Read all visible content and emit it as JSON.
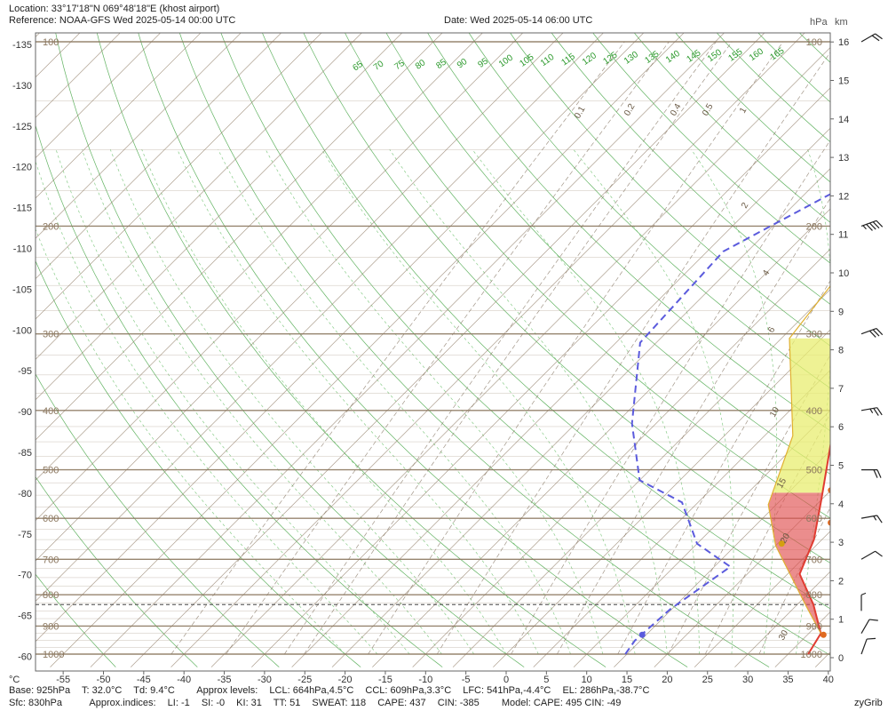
{
  "header": {
    "location_label": "Location:",
    "location_value": "33°17'18\"N  069°48'18\"E (khost airport)",
    "reference_label": "Reference:",
    "reference_value": "NOAA-GFS Wed 2025-05-14 00:00 UTC",
    "date_label": "Date:",
    "date_value": "Wed 2025-05-14 06:00 UTC"
  },
  "footer": {
    "line1": [
      "Base: 925hPa",
      "T: 32.0°C",
      "Td: 9.4°C",
      "Approx levels:",
      "LCL: 664hPa,4.5°C",
      "CCL: 609hPa,3.3°C",
      "LFC: 541hPa,-4.4°C",
      "EL: 286hPa,-38.7°C"
    ],
    "line2": [
      "Sfc: 830hPa",
      "Approx.indices:",
      "LI: -1",
      "SI: -0",
      "KI: 31",
      "TT: 51",
      "SWEAT: 118",
      "CAPE: 437",
      "CIN: -385",
      "Model: CAPE: 495 CIN: -49"
    ],
    "brand": "zyGrib"
  },
  "chart_data": {
    "type": "line",
    "subtype": "skew-t log-p diagram",
    "xlabel": "°C",
    "xlim": [
      -60,
      40
    ],
    "ylim_hpa": [
      1000,
      100
    ],
    "x_ticks": [
      -55,
      -50,
      -45,
      -40,
      -35,
      -30,
      -25,
      -20,
      -15,
      -10,
      -5,
      0,
      5,
      10,
      15,
      20,
      25,
      30,
      35,
      40
    ],
    "left_isotherm_labels": [
      -135,
      -130,
      -125,
      -120,
      -115,
      -110,
      -105,
      -100,
      -95,
      -90,
      -85,
      -80,
      -75,
      -70,
      -65,
      -60
    ],
    "pressure_levels": [
      1000,
      900,
      800,
      700,
      600,
      500,
      400,
      300,
      200,
      100
    ],
    "pressure_axis_label": "hPa",
    "height_axis_label": "km",
    "height_ticks": [
      0,
      1,
      2,
      3,
      4,
      5,
      6,
      7,
      8,
      9,
      10,
      11,
      12,
      13,
      14,
      15,
      16
    ],
    "top_mixing_ratio_labels": [
      "65",
      "70",
      "75",
      "80",
      "85",
      "90",
      "95",
      "100",
      "105",
      "110",
      "115",
      "120",
      "125",
      "130",
      "135",
      "140",
      "145",
      "150",
      "155",
      "160",
      "165"
    ],
    "mixing_ratio_labels": [
      "0.1",
      "0.2",
      "0.4",
      "0.5",
      "1",
      "2",
      "4",
      "6",
      "10",
      "15",
      "20",
      "30"
    ],
    "series": [
      {
        "name": "temperature",
        "color": "#e03c31",
        "points": [
          [
            37.5,
            1000
          ],
          [
            36.5,
            925
          ],
          [
            32.0,
            830
          ],
          [
            26.5,
            740
          ],
          [
            24.0,
            650
          ],
          [
            20.0,
            560
          ],
          [
            14.0,
            450
          ],
          [
            8.0,
            330
          ],
          [
            11.0,
            210
          ],
          [
            7.0,
            100
          ]
        ]
      },
      {
        "name": "dewpoint",
        "color": "#5b5bdd",
        "points": [
          [
            14.8,
            1000
          ],
          [
            14.3,
            950
          ],
          [
            14.8,
            845
          ],
          [
            17.0,
            720
          ],
          [
            10.0,
            660
          ],
          [
            3.0,
            565
          ],
          [
            -5.0,
            520
          ],
          [
            -13.0,
            420
          ],
          [
            -22.0,
            310
          ],
          [
            -23.0,
            220
          ],
          [
            -12.0,
            150
          ],
          [
            -4.0,
            100
          ]
        ]
      },
      {
        "name": "parcel",
        "color": "#e0b030",
        "points": [
          [
            36.5,
            925
          ],
          [
            31.0,
            830
          ],
          [
            20.0,
            665
          ],
          [
            14.0,
            570
          ],
          [
            8.5,
            440
          ],
          [
            -4.0,
            305
          ],
          [
            -12.0,
            100
          ]
        ]
      }
    ],
    "cape_fill_color": "#e8ed70",
    "cin_fill_color": "#e05050",
    "marker_points": [
      {
        "series": "temperature",
        "t": 37.0,
        "p": 930
      },
      {
        "series": "dewpoint",
        "t": 14.5,
        "p": 930
      },
      {
        "series": "temperature",
        "t": 24.0,
        "p": 610
      },
      {
        "series": "temperature",
        "t": 20.0,
        "p": 540
      },
      {
        "series": "parcel",
        "t": 20.5,
        "p": 660
      },
      {
        "series": "parcel",
        "t": 7.0,
        "p": 305
      }
    ],
    "wind_barbs": [
      {
        "p": 1000,
        "dir": 200,
        "kt": 10
      },
      {
        "p": 925,
        "dir": 210,
        "kt": 10
      },
      {
        "p": 850,
        "dir": 180,
        "kt": 5
      },
      {
        "p": 700,
        "dir": 240,
        "kt": 10
      },
      {
        "p": 600,
        "dir": 260,
        "kt": 15
      },
      {
        "p": 500,
        "dir": 270,
        "kt": 20
      },
      {
        "p": 400,
        "dir": 260,
        "kt": 25
      },
      {
        "p": 300,
        "dir": 250,
        "kt": 30
      },
      {
        "p": 200,
        "dir": 250,
        "kt": 45
      },
      {
        "p": 100,
        "dir": 240,
        "kt": 20
      }
    ],
    "surface_pressure_line": 830,
    "colors": {
      "isobar": "#8c7860",
      "isotherm": "#8c7860",
      "dry_adiabat": "#2d9a2d",
      "moist_adiabat": "#6cbf6c",
      "mixing_ratio": "#7a6a55"
    }
  }
}
